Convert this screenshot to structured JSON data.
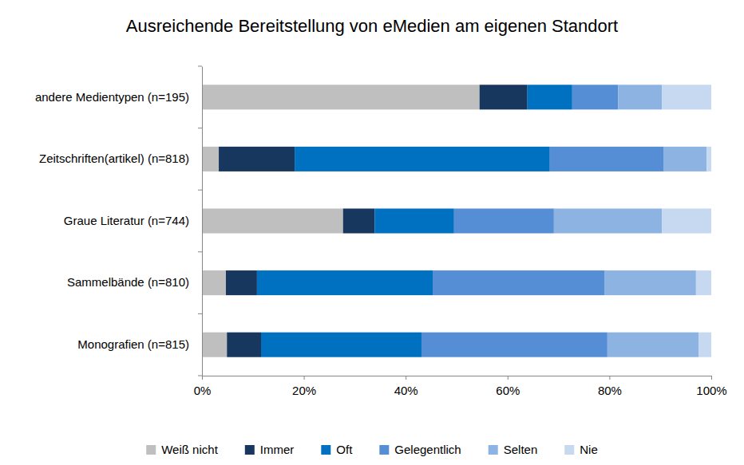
{
  "chart_data": {
    "type": "bar",
    "title": "Ausreichende Bereitstellung von eMedien am eigenen Standort",
    "orientation": "horizontal",
    "stacked": true,
    "grid": false,
    "legend": "bottom",
    "categories": [
      "andere Medientypen (n=195)",
      "Zeitschriften(artikel) (n=818)",
      "Graue Literatur (n=744)",
      "Sammelbände (n=810)",
      "Monografien (n=815)"
    ],
    "series": [
      {
        "name": "Weiß nicht",
        "color": "#bfbfbf",
        "values": [
          54.5,
          3.3,
          27.7,
          4.7,
          4.9
        ]
      },
      {
        "name": "Immer",
        "color": "#17375e",
        "values": [
          9.4,
          14.9,
          6.2,
          6.1,
          6.7
        ]
      },
      {
        "name": "Oft",
        "color": "#0070c0",
        "values": [
          8.8,
          50.1,
          15.6,
          34.5,
          31.5
        ]
      },
      {
        "name": "Gelegentlich",
        "color": "#558ed5",
        "values": [
          9.0,
          22.3,
          19.6,
          33.7,
          36.5
        ]
      },
      {
        "name": "Selten",
        "color": "#8db3e2",
        "values": [
          8.6,
          8.5,
          21.2,
          18.0,
          17.9
        ]
      },
      {
        "name": "Nie",
        "color": "#c6d9f1",
        "values": [
          9.7,
          0.9,
          9.7,
          3.0,
          2.5
        ]
      }
    ],
    "xlim": [
      0,
      100
    ],
    "xticks": [
      {
        "value": 0,
        "label": "0%"
      },
      {
        "value": 20,
        "label": "20%"
      },
      {
        "value": 40,
        "label": "40%"
      },
      {
        "value": 60,
        "label": "60%"
      },
      {
        "value": 80,
        "label": "80%"
      },
      {
        "value": 100,
        "label": "100%"
      }
    ]
  }
}
